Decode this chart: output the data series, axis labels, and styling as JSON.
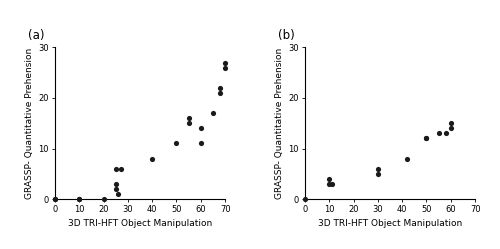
{
  "plot_a": {
    "label": "(a)",
    "x": [
      0,
      0,
      10,
      10,
      20,
      25,
      25,
      25,
      26,
      27,
      40,
      50,
      55,
      55,
      60,
      60,
      65,
      68,
      68,
      70,
      70
    ],
    "y": [
      0,
      0,
      0,
      0,
      0,
      3,
      2,
      6,
      1,
      6,
      8,
      11,
      15,
      16,
      14,
      11,
      17,
      21,
      22,
      26,
      27
    ],
    "xlabel": "3D TRI-HFT Object Manipulation",
    "ylabel": "GRASSP- Quantitative Prehension",
    "xlim": [
      -2,
      72
    ],
    "ylim": [
      -1,
      31
    ],
    "xticks": [
      0,
      10,
      20,
      30,
      40,
      50,
      60,
      70
    ],
    "yticks": [
      0,
      10,
      20,
      30
    ]
  },
  "plot_b": {
    "label": "(b)",
    "x": [
      0,
      10,
      10,
      11,
      30,
      30,
      42,
      50,
      50,
      55,
      58,
      60,
      60
    ],
    "y": [
      0,
      3,
      4,
      3,
      5,
      6,
      8,
      12,
      12,
      13,
      13,
      14,
      15
    ],
    "xlabel": "3D TRI-HFT Object Manipulation",
    "ylabel": "GRASSP- Quantitative Prehension",
    "xlim": [
      -2,
      72
    ],
    "ylim": [
      -1,
      31
    ],
    "xticks": [
      0,
      10,
      20,
      30,
      40,
      50,
      60,
      70
    ],
    "yticks": [
      0,
      10,
      20,
      30
    ]
  },
  "dot_color": "#1a1a1a",
  "dot_size": 14,
  "background_color": "#ffffff",
  "xlabel_fontsize": 6.5,
  "ylabel_fontsize": 6.5,
  "tick_fontsize": 6,
  "panel_label_fontsize": 8.5
}
